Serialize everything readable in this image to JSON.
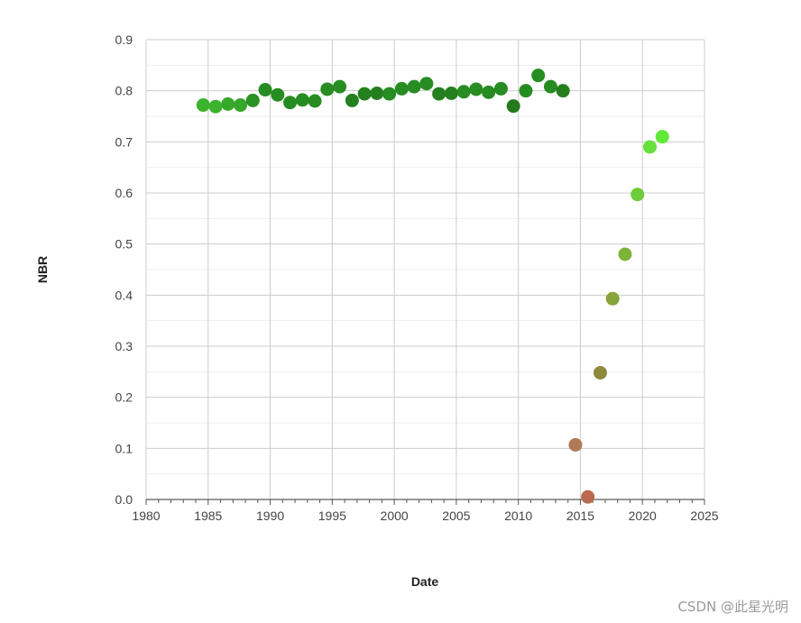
{
  "chart_data": {
    "type": "scatter",
    "title": "",
    "xlabel": "Date",
    "ylabel": "NBR",
    "xlim": [
      1980,
      2025
    ],
    "ylim": [
      0,
      0.9
    ],
    "x_ticks": [
      "1980",
      "1985",
      "1990",
      "1995",
      "2000",
      "2005",
      "2010",
      "2015",
      "2020",
      "2025"
    ],
    "y_ticks": [
      "0.0",
      "0.1",
      "0.2",
      "0.3",
      "0.4",
      "0.5",
      "0.6",
      "0.7",
      "0.8",
      "0.9"
    ],
    "grid": true,
    "legend": "none",
    "points": [
      {
        "x": 1984.6,
        "y": 0.772,
        "color": "#3cb32d"
      },
      {
        "x": 1985.6,
        "y": 0.769,
        "color": "#3cb32d"
      },
      {
        "x": 1986.6,
        "y": 0.774,
        "color": "#36a82a"
      },
      {
        "x": 1987.6,
        "y": 0.772,
        "color": "#36a82a"
      },
      {
        "x": 1988.6,
        "y": 0.781,
        "color": "#2a9323"
      },
      {
        "x": 1989.6,
        "y": 0.802,
        "color": "#278c21"
      },
      {
        "x": 1990.6,
        "y": 0.792,
        "color": "#278c21"
      },
      {
        "x": 1991.6,
        "y": 0.777,
        "color": "#278c21"
      },
      {
        "x": 1992.6,
        "y": 0.782,
        "color": "#278c21"
      },
      {
        "x": 1993.6,
        "y": 0.78,
        "color": "#278c21"
      },
      {
        "x": 1994.6,
        "y": 0.803,
        "color": "#278c21"
      },
      {
        "x": 1995.6,
        "y": 0.808,
        "color": "#278c21"
      },
      {
        "x": 1996.6,
        "y": 0.781,
        "color": "#247f1f"
      },
      {
        "x": 1997.6,
        "y": 0.794,
        "color": "#247f1f"
      },
      {
        "x": 1998.6,
        "y": 0.795,
        "color": "#247f1f"
      },
      {
        "x": 1999.6,
        "y": 0.794,
        "color": "#278c21"
      },
      {
        "x": 2000.6,
        "y": 0.804,
        "color": "#278c21"
      },
      {
        "x": 2001.6,
        "y": 0.808,
        "color": "#278c21"
      },
      {
        "x": 2002.6,
        "y": 0.814,
        "color": "#278c21"
      },
      {
        "x": 2003.6,
        "y": 0.794,
        "color": "#247f1f"
      },
      {
        "x": 2004.6,
        "y": 0.795,
        "color": "#247f1f"
      },
      {
        "x": 2005.6,
        "y": 0.798,
        "color": "#278c21"
      },
      {
        "x": 2006.6,
        "y": 0.803,
        "color": "#278c21"
      },
      {
        "x": 2007.6,
        "y": 0.797,
        "color": "#278c21"
      },
      {
        "x": 2008.6,
        "y": 0.804,
        "color": "#278c21"
      },
      {
        "x": 2009.6,
        "y": 0.77,
        "color": "#237a1c"
      },
      {
        "x": 2010.6,
        "y": 0.8,
        "color": "#278c21"
      },
      {
        "x": 2011.6,
        "y": 0.83,
        "color": "#278c21"
      },
      {
        "x": 2012.6,
        "y": 0.808,
        "color": "#278c21"
      },
      {
        "x": 2013.6,
        "y": 0.8,
        "color": "#247f1f"
      },
      {
        "x": 2014.6,
        "y": 0.107,
        "color": "#b07a55"
      },
      {
        "x": 2015.6,
        "y": 0.005,
        "color": "#b96a4e"
      },
      {
        "x": 2016.6,
        "y": 0.248,
        "color": "#8e8a3c"
      },
      {
        "x": 2017.6,
        "y": 0.393,
        "color": "#86a43a"
      },
      {
        "x": 2018.6,
        "y": 0.48,
        "color": "#7db33a"
      },
      {
        "x": 2019.6,
        "y": 0.597,
        "color": "#6fcc3a"
      },
      {
        "x": 2020.6,
        "y": 0.69,
        "color": "#66e03a"
      },
      {
        "x": 2021.6,
        "y": 0.71,
        "color": "#60ea38"
      }
    ]
  },
  "watermark": "CSDN @此星光明"
}
